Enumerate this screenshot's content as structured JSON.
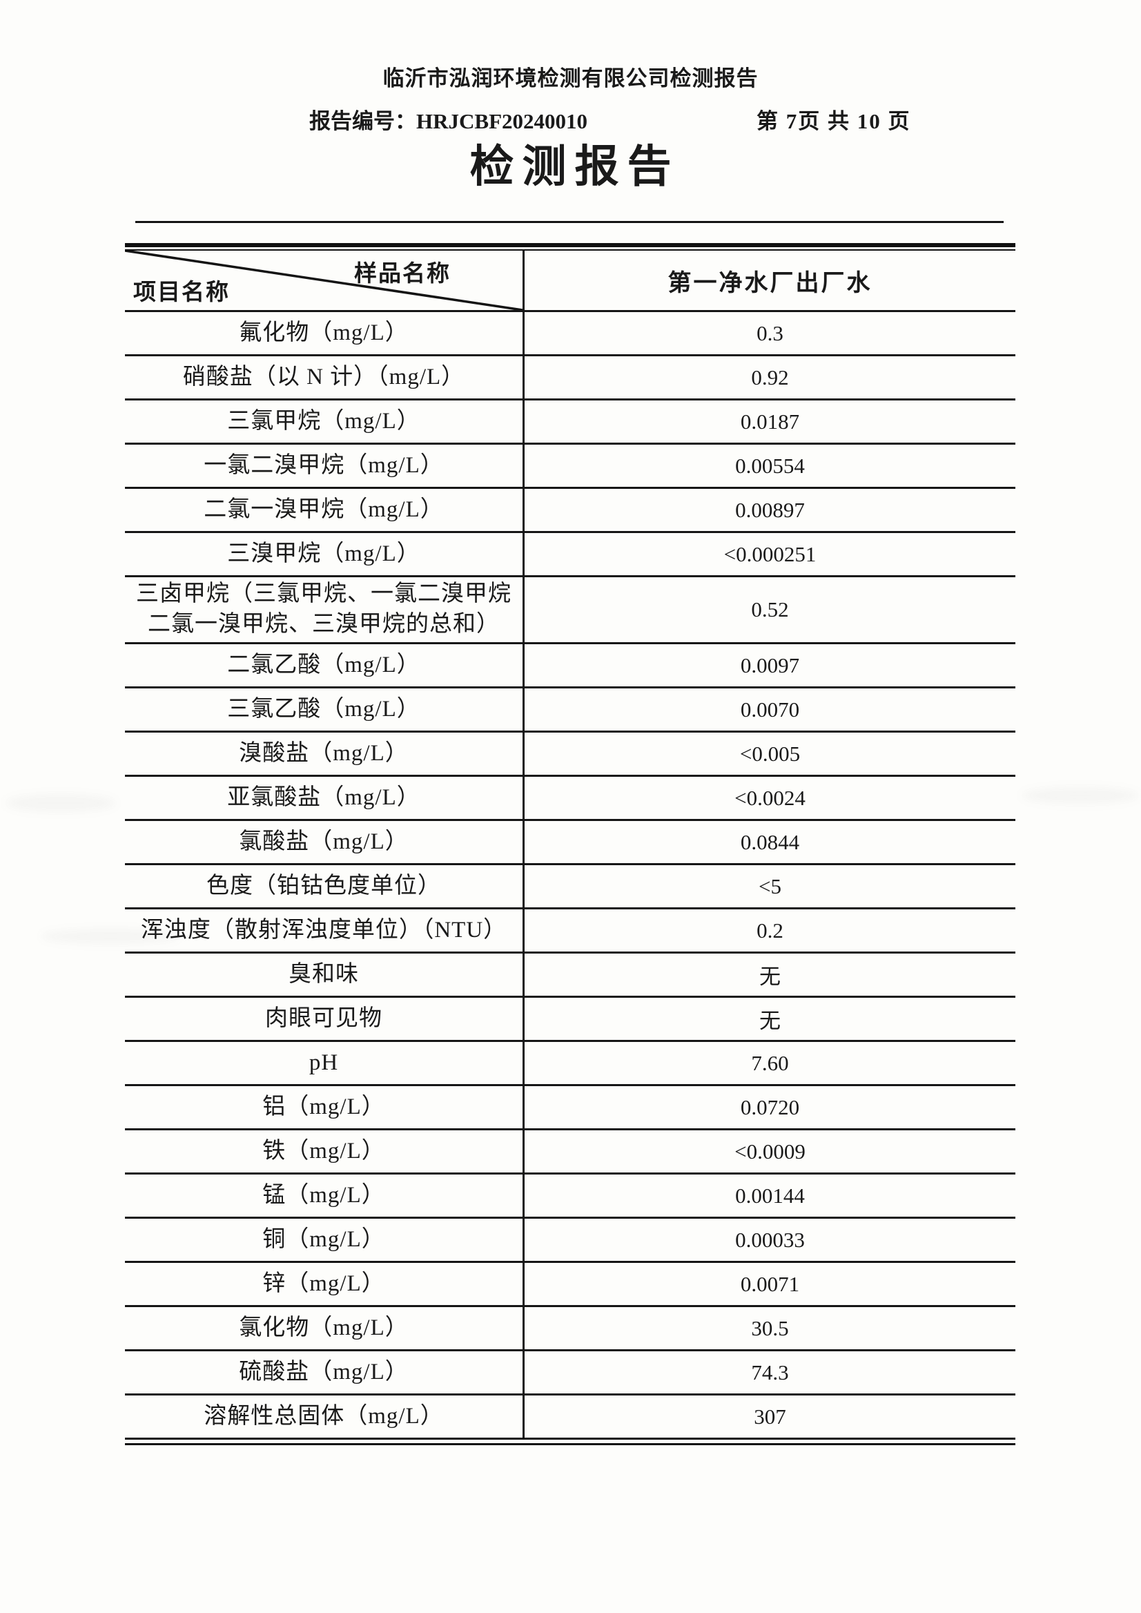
{
  "page": {
    "company_header": "临沂市泓润环境检测有限公司检测报告",
    "report_no_label": "报告编号：",
    "report_no": "HRJCBF20240010",
    "page_indicator": "第 7页 共 10 页",
    "title": "检测报告"
  },
  "table": {
    "corner_top_right": "样品名称",
    "corner_bottom_left": "项目名称",
    "column_header": "第一净水厂出厂水",
    "rows": [
      {
        "item": "氟化物（mg/L）",
        "value": "0.3"
      },
      {
        "item": "硝酸盐（以 N 计）（mg/L）",
        "value": "0.92"
      },
      {
        "item": "三氯甲烷（mg/L）",
        "value": "0.0187"
      },
      {
        "item": "一氯二溴甲烷（mg/L）",
        "value": "0.00554"
      },
      {
        "item": "二氯一溴甲烷（mg/L）",
        "value": "0.00897"
      },
      {
        "item": "三溴甲烷（mg/L）",
        "value": "<0.000251"
      },
      {
        "item": "三卤甲烷（三氯甲烷、一氯二溴甲烷\n二氯一溴甲烷、三溴甲烷的总和）",
        "value": "0.52"
      },
      {
        "item": "二氯乙酸（mg/L）",
        "value": "0.0097"
      },
      {
        "item": "三氯乙酸（mg/L）",
        "value": "0.0070"
      },
      {
        "item": "溴酸盐（mg/L）",
        "value": "<0.005"
      },
      {
        "item": "亚氯酸盐（mg/L）",
        "value": "<0.0024"
      },
      {
        "item": "氯酸盐（mg/L）",
        "value": "0.0844"
      },
      {
        "item": "色度（铂钴色度单位）",
        "value": "<5"
      },
      {
        "item": "浑浊度（散射浑浊度单位）（NTU）",
        "value": "0.2"
      },
      {
        "item": "臭和味",
        "value": "无"
      },
      {
        "item": "肉眼可见物",
        "value": "无"
      },
      {
        "item": "pH",
        "value": "7.60"
      },
      {
        "item": "铝（mg/L）",
        "value": "0.0720"
      },
      {
        "item": "铁（mg/L）",
        "value": "<0.0009"
      },
      {
        "item": "锰（mg/L）",
        "value": "0.00144"
      },
      {
        "item": "铜（mg/L）",
        "value": "0.00033"
      },
      {
        "item": "锌（mg/L）",
        "value": "0.0071"
      },
      {
        "item": "氯化物（mg/L）",
        "value": "30.5"
      },
      {
        "item": "硫酸盐（mg/L）",
        "value": "74.3"
      },
      {
        "item": "溶解性总固体（mg/L）",
        "value": "307"
      }
    ]
  },
  "colors": {
    "ink": "#1a1a1a",
    "paper": "#fdfdfb"
  }
}
